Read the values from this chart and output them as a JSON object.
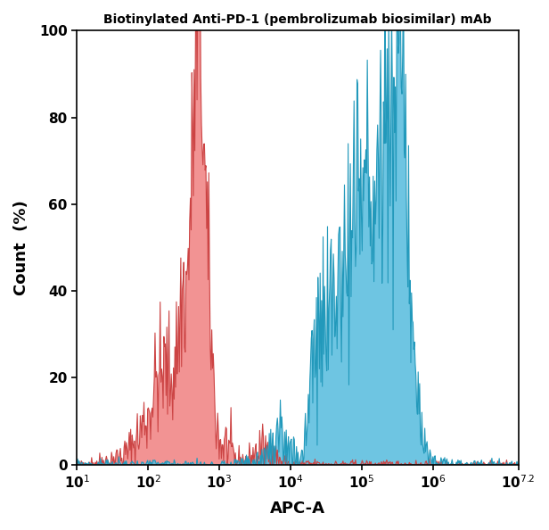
{
  "title": "Biotinylated Anti-PD-1 (pembrolizumab biosimilar) mAb",
  "xlabel": "APC-A",
  "ylabel": "Count  (%)",
  "xlim_log": [
    1,
    7.2
  ],
  "ylim": [
    0,
    100
  ],
  "yticks": [
    0,
    20,
    40,
    60,
    80,
    100
  ],
  "red_fill_color": "#F08080",
  "red_edge_color": "#CC4444",
  "blue_fill_color": "#55BBDD",
  "blue_edge_color": "#2299BB",
  "background_color": "#ffffff",
  "red_curve": [
    [
      1.0,
      0
    ],
    [
      1.3,
      0.5
    ],
    [
      1.5,
      1.2
    ],
    [
      1.65,
      2.0
    ],
    [
      1.75,
      3.5
    ],
    [
      1.82,
      5.5
    ],
    [
      1.88,
      7.0
    ],
    [
      1.92,
      9.0
    ],
    [
      1.96,
      10.5
    ],
    [
      2.0,
      11.5
    ],
    [
      2.04,
      14.0
    ],
    [
      2.07,
      16.0
    ],
    [
      2.1,
      18.5
    ],
    [
      2.13,
      20.5
    ],
    [
      2.16,
      21.0
    ],
    [
      2.19,
      20.0
    ],
    [
      2.22,
      21.5
    ],
    [
      2.25,
      22.5
    ],
    [
      2.28,
      21.0
    ],
    [
      2.31,
      20.0
    ],
    [
      2.34,
      20.5
    ],
    [
      2.37,
      23.0
    ],
    [
      2.4,
      26.0
    ],
    [
      2.43,
      30.0
    ],
    [
      2.46,
      36.0
    ],
    [
      2.49,
      40.0
    ],
    [
      2.52,
      38.0
    ],
    [
      2.55,
      42.0
    ],
    [
      2.58,
      52.0
    ],
    [
      2.61,
      65.0
    ],
    [
      2.64,
      80.0
    ],
    [
      2.67,
      91.0
    ],
    [
      2.7,
      100.0
    ],
    [
      2.73,
      96.0
    ],
    [
      2.76,
      85.0
    ],
    [
      2.79,
      70.0
    ],
    [
      2.82,
      55.0
    ],
    [
      2.85,
      42.0
    ],
    [
      2.88,
      32.0
    ],
    [
      2.91,
      22.0
    ],
    [
      2.94,
      14.0
    ],
    [
      2.97,
      9.0
    ],
    [
      3.0,
      5.5
    ],
    [
      3.03,
      4.0
    ],
    [
      3.06,
      4.5
    ],
    [
      3.09,
      5.0
    ],
    [
      3.12,
      4.5
    ],
    [
      3.15,
      3.5
    ],
    [
      3.18,
      2.5
    ],
    [
      3.21,
      1.5
    ],
    [
      3.3,
      0.8
    ],
    [
      3.4,
      1.0
    ],
    [
      3.5,
      2.5
    ],
    [
      3.6,
      3.5
    ],
    [
      3.7,
      3.0
    ],
    [
      3.8,
      1.5
    ],
    [
      3.9,
      0.5
    ],
    [
      4.0,
      0.2
    ],
    [
      4.5,
      0.1
    ],
    [
      7.2,
      0
    ]
  ],
  "blue_curve": [
    [
      1.0,
      0
    ],
    [
      2.5,
      0
    ],
    [
      2.8,
      0
    ],
    [
      3.0,
      0.0
    ],
    [
      3.3,
      0.2
    ],
    [
      3.5,
      0.5
    ],
    [
      3.6,
      1.5
    ],
    [
      3.7,
      3.0
    ],
    [
      3.75,
      2.0
    ],
    [
      3.8,
      3.5
    ],
    [
      3.85,
      4.5
    ],
    [
      3.88,
      3.0
    ],
    [
      3.92,
      4.5
    ],
    [
      3.95,
      5.0
    ],
    [
      3.98,
      3.5
    ],
    [
      4.0,
      2.5
    ],
    [
      4.03,
      3.0
    ],
    [
      4.06,
      2.0
    ],
    [
      4.09,
      1.5
    ],
    [
      4.12,
      1.0
    ],
    [
      4.15,
      0.8
    ],
    [
      4.18,
      4.0
    ],
    [
      4.21,
      8.0
    ],
    [
      4.24,
      14.0
    ],
    [
      4.27,
      19.0
    ],
    [
      4.3,
      26.0
    ],
    [
      4.33,
      29.0
    ],
    [
      4.36,
      25.0
    ],
    [
      4.39,
      22.0
    ],
    [
      4.42,
      28.0
    ],
    [
      4.45,
      35.0
    ],
    [
      4.48,
      31.0
    ],
    [
      4.51,
      27.0
    ],
    [
      4.54,
      30.0
    ],
    [
      4.57,
      38.0
    ],
    [
      4.6,
      40.0
    ],
    [
      4.63,
      37.0
    ],
    [
      4.66,
      42.0
    ],
    [
      4.69,
      48.0
    ],
    [
      4.72,
      45.0
    ],
    [
      4.75,
      42.0
    ],
    [
      4.78,
      48.0
    ],
    [
      4.81,
      55.0
    ],
    [
      4.84,
      52.0
    ],
    [
      4.87,
      56.0
    ],
    [
      4.9,
      63.0
    ],
    [
      4.93,
      59.0
    ],
    [
      4.96,
      56.0
    ],
    [
      4.99,
      60.0
    ],
    [
      5.02,
      65.0
    ],
    [
      5.05,
      68.0
    ],
    [
      5.08,
      63.0
    ],
    [
      5.11,
      58.0
    ],
    [
      5.14,
      62.0
    ],
    [
      5.17,
      65.0
    ],
    [
      5.2,
      60.0
    ],
    [
      5.23,
      63.0
    ],
    [
      5.26,
      70.0
    ],
    [
      5.29,
      75.0
    ],
    [
      5.32,
      80.0
    ],
    [
      5.35,
      85.0
    ],
    [
      5.38,
      87.0
    ],
    [
      5.41,
      85.0
    ],
    [
      5.44,
      80.0
    ],
    [
      5.47,
      83.0
    ],
    [
      5.5,
      86.0
    ],
    [
      5.53,
      100.0
    ],
    [
      5.56,
      90.0
    ],
    [
      5.59,
      82.0
    ],
    [
      5.62,
      75.0
    ],
    [
      5.65,
      55.0
    ],
    [
      5.68,
      45.0
    ],
    [
      5.71,
      38.0
    ],
    [
      5.74,
      28.0
    ],
    [
      5.77,
      20.0
    ],
    [
      5.8,
      13.0
    ],
    [
      5.83,
      8.0
    ],
    [
      5.86,
      5.0
    ],
    [
      5.89,
      3.0
    ],
    [
      5.92,
      2.0
    ],
    [
      5.95,
      1.0
    ],
    [
      6.0,
      0.5
    ],
    [
      6.1,
      0.2
    ],
    [
      6.2,
      0.1
    ],
    [
      6.5,
      0
    ],
    [
      7.2,
      0
    ]
  ]
}
